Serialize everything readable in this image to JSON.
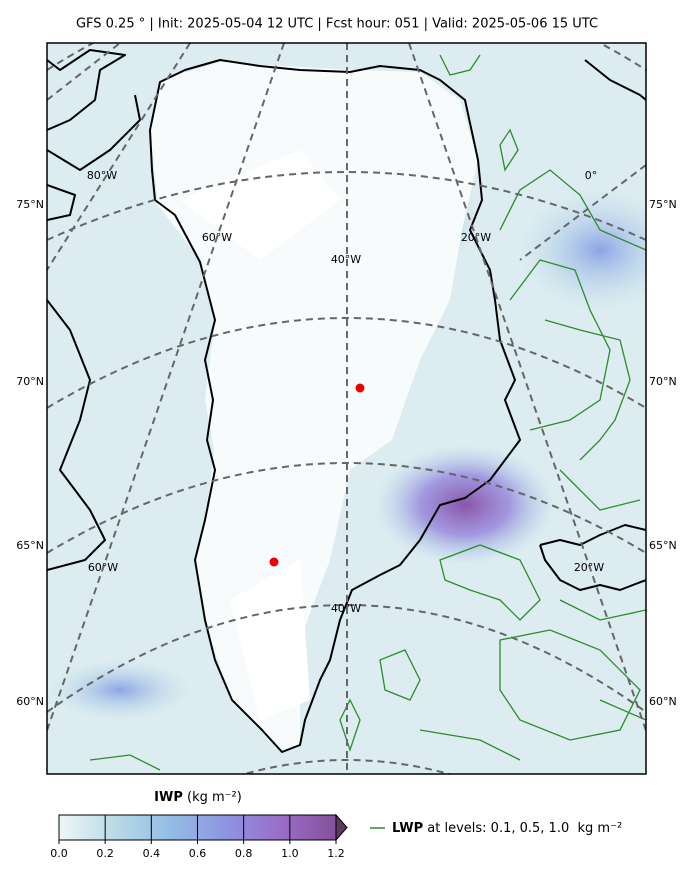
{
  "title": "GFS 0.25 °  |  Init: 2025-05-04 12 UTC  |  Fcst hour: 051  |  Valid: 2025-05-06 15 UTC",
  "map": {
    "lat_labels_left": [
      "75°N",
      "70°N",
      "65°N",
      "60°N"
    ],
    "lat_labels_right": [
      "75°N",
      "70°N",
      "65°N",
      "60°N"
    ],
    "lon_labels": [
      "80°W",
      "0°",
      "60°W",
      "20°W",
      "40°W",
      "60°W",
      "20°W",
      "40°W"
    ]
  },
  "colorbar": {
    "label": "IWP",
    "unit": "(kg m⁻²)",
    "ticks": [
      {
        "value": 0,
        "label": "0.0"
      },
      {
        "value": 0.2,
        "label": "0.2"
      },
      {
        "value": 0.4,
        "label": "0.4"
      },
      {
        "value": 0.6,
        "label": "0.6"
      },
      {
        "value": 0.8,
        "label": "0.8"
      },
      {
        "value": 1,
        "label": "1.0"
      },
      {
        "value": 1.2,
        "label": "1.2"
      }
    ],
    "colors": [
      "#eef6f7",
      "#b9dbe6",
      "#94bde6",
      "#8e95e2",
      "#9a6ec8",
      "#84509a",
      "#5c3a5e"
    ]
  },
  "legend": {
    "label": "LWP",
    "text": " at levels: 0.1, 0.5, 1.0  kg m⁻²",
    "color": "#2e8b2e"
  }
}
